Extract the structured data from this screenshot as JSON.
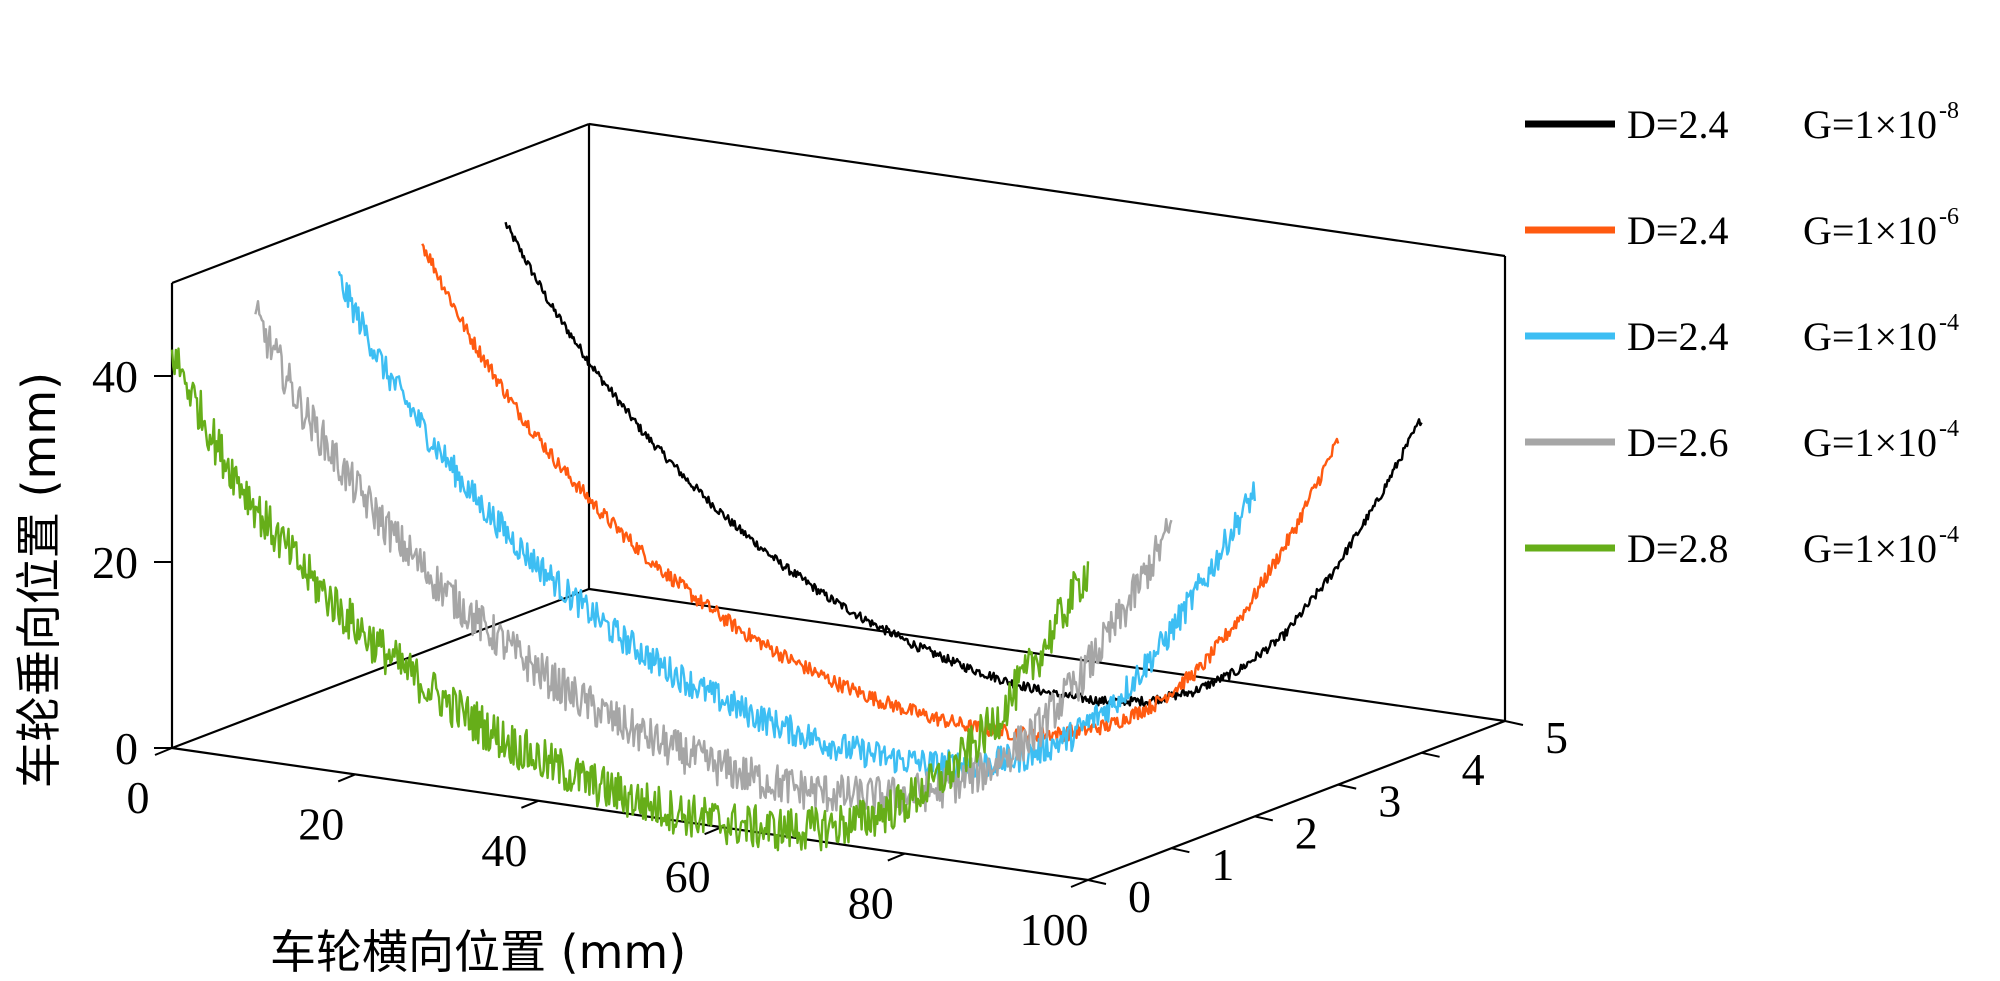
{
  "chart_data": {
    "type": "line",
    "subtype": "3d-line",
    "title": "",
    "xlabel": "车轮横向位置 (mm)",
    "ylabel": "车轮垂向位置 (mm)",
    "zlabel": "",
    "xlim": [
      0,
      100
    ],
    "ylim": [
      0,
      5
    ],
    "zlim": [
      0,
      50
    ],
    "x_ticks": [
      "0",
      "20",
      "40",
      "60",
      "80",
      "100"
    ],
    "y_ticks": [
      "0",
      "1",
      "2",
      "3",
      "4",
      "5"
    ],
    "z_ticks": [
      "0",
      "20",
      "40"
    ],
    "x_tick_values": [
      0,
      20,
      40,
      60,
      80,
      100
    ],
    "y_tick_values": [
      0,
      1,
      2,
      3,
      4,
      5
    ],
    "z_tick_values": [
      0,
      20,
      40
    ],
    "legend_position": "right",
    "series": [
      {
        "name": "D=2.4 G=1×10-8",
        "D_label": "D=2.4",
        "G_base": "G=1×10",
        "G_exp": "-8",
        "color": "#000000",
        "depth": 4,
        "x": [
          0,
          5,
          10,
          15,
          20,
          25,
          30,
          35,
          40,
          45,
          50,
          55,
          60,
          65,
          70,
          75,
          80,
          85,
          90,
          95,
          100
        ],
        "z": [
          42.7,
          34.5,
          28.0,
          22.4,
          17.8,
          13.8,
          10.4,
          7.6,
          5.4,
          3.6,
          2.2,
          1.2,
          0.6,
          0.6,
          1.3,
          3.0,
          6.0,
          10.5,
          17.5,
          26.0,
          36.0
        ],
        "noise": 0.5
      },
      {
        "name": "D=2.4 G=1×10-6",
        "D_label": "D=2.4",
        "G_base": "G=1×10",
        "G_exp": "-6",
        "color": "#FF5A10",
        "depth": 3,
        "x": [
          0,
          5,
          10,
          15,
          20,
          25,
          30,
          35,
          40,
          45,
          50,
          55,
          60,
          65,
          70,
          75,
          80,
          85,
          90,
          95,
          100
        ],
        "z": [
          44.0,
          35.0,
          28.0,
          22.2,
          17.4,
          13.4,
          10.0,
          7.2,
          5.0,
          3.2,
          1.9,
          1.0,
          0.5,
          0.5,
          1.2,
          2.8,
          5.8,
          10.4,
          17.5,
          26.3,
          37.0
        ],
        "noise": 0.8
      },
      {
        "name": "D=2.4 G=1×10-4",
        "D_label": "D=2.4",
        "G_base": "G=1×10",
        "G_exp": "-4",
        "color": "#3DBEF3",
        "depth": 2,
        "x": [
          0,
          5,
          10,
          15,
          20,
          25,
          30,
          35,
          40,
          45,
          50,
          55,
          60,
          65,
          70,
          75,
          80,
          85,
          90,
          95,
          100
        ],
        "z": [
          43.5,
          34.6,
          27.8,
          22.0,
          17.3,
          13.3,
          9.9,
          7.1,
          4.9,
          3.2,
          1.9,
          1.0,
          0.6,
          0.6,
          1.3,
          2.9,
          5.8,
          10.4,
          17.2,
          25.5,
          35.0
        ],
        "noise": 1.6
      },
      {
        "name": "D=2.6 G=1×10-4",
        "D_label": "D=2.6",
        "G_base": "G=1×10",
        "G_exp": "-4",
        "color": "#A6A6A6",
        "depth": 1,
        "x": [
          0,
          5,
          10,
          15,
          20,
          25,
          30,
          35,
          40,
          45,
          50,
          55,
          60,
          65,
          70,
          75,
          80,
          85,
          90,
          95,
          100
        ],
        "z": [
          43.0,
          34.0,
          27.2,
          21.6,
          17.0,
          13.1,
          9.8,
          7.0,
          4.8,
          3.1,
          1.9,
          1.0,
          0.6,
          0.6,
          1.3,
          2.9,
          5.7,
          10.2,
          16.8,
          25.0,
          34.5
        ],
        "noise": 2.2
      },
      {
        "name": "D=2.8 G=1×10-4",
        "D_label": "D=2.8",
        "G_base": "G=1×10",
        "G_exp": "-4",
        "color": "#66AE19",
        "depth": 0,
        "x": [
          0,
          5,
          10,
          15,
          20,
          25,
          30,
          35,
          40,
          45,
          50,
          55,
          60,
          65,
          70,
          75,
          80,
          85,
          90,
          95,
          100
        ],
        "z": [
          42.5,
          33.0,
          26.0,
          20.5,
          16.0,
          12.3,
          9.2,
          6.6,
          4.5,
          2.9,
          1.7,
          0.9,
          0.5,
          0.5,
          1.2,
          2.7,
          5.4,
          9.6,
          15.8,
          24.0,
          33.5
        ],
        "noise": 2.4
      }
    ]
  }
}
